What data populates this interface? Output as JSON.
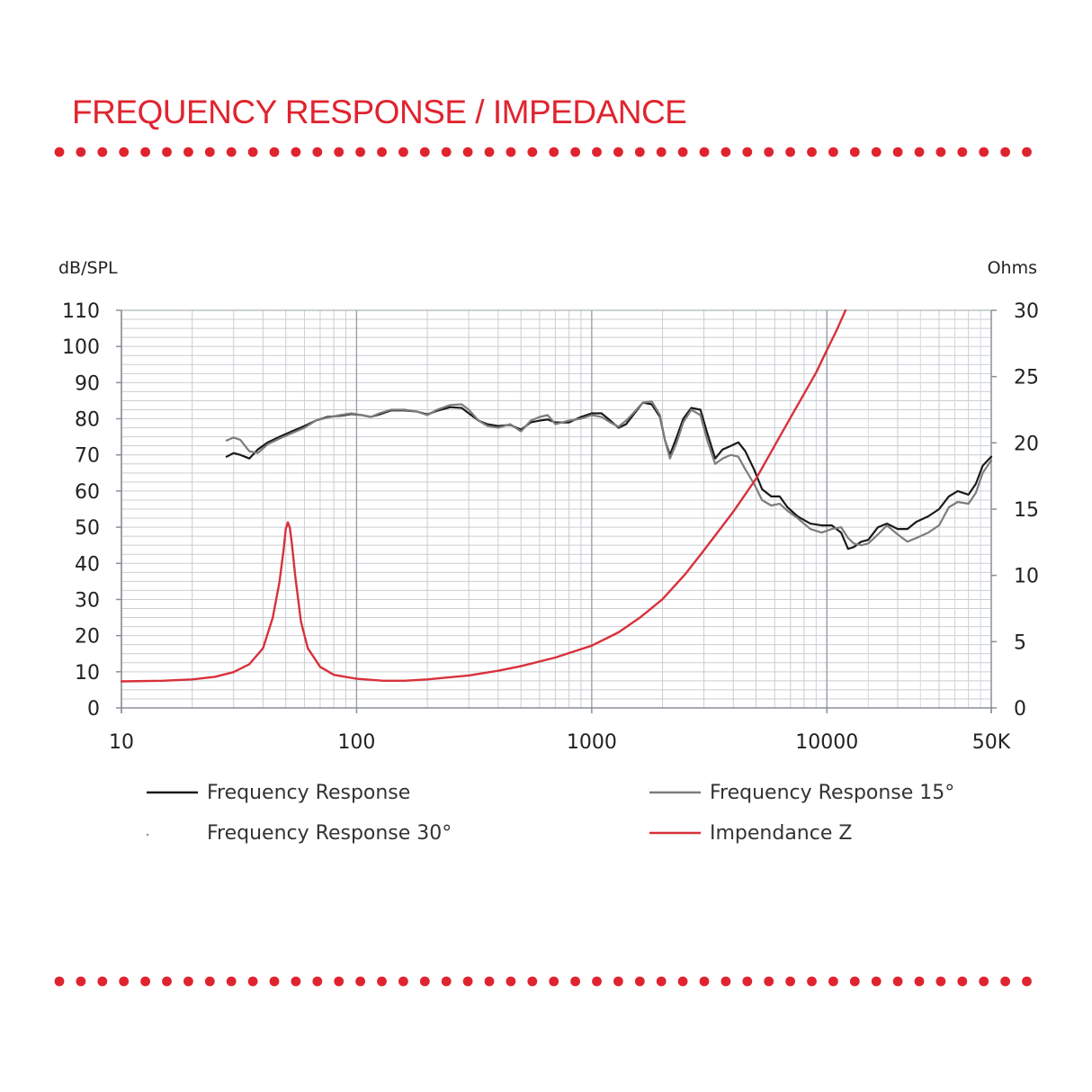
{
  "page": {
    "title": "FREQUENCY RESPONSE / IMPEDANCE",
    "accent_color": "#e0242f"
  },
  "chart_data": {
    "type": "line",
    "title": "FREQUENCY RESPONSE / IMPEDANCE",
    "x_scale": "log",
    "xlim": [
      10,
      50000
    ],
    "x_ticks": [
      {
        "value": 10,
        "label": "10"
      },
      {
        "value": 100,
        "label": "100"
      },
      {
        "value": 1000,
        "label": "1000"
      },
      {
        "value": 10000,
        "label": "10000"
      },
      {
        "value": 50000,
        "label": "50K"
      }
    ],
    "ylabel_left": "dB/SPL",
    "ylim_left": [
      0,
      110
    ],
    "y_ticks_left": [
      0,
      10,
      20,
      30,
      40,
      50,
      60,
      70,
      80,
      90,
      100,
      110
    ],
    "ylabel_right": "Ohms",
    "ylim_right": [
      0,
      30
    ],
    "y_ticks_right": [
      0,
      5,
      10,
      15,
      20,
      25,
      30
    ],
    "grid": true,
    "legend_position": "bottom",
    "series": [
      {
        "name": "Frequency Response",
        "axis": "left",
        "color": "#1a1a1a",
        "points": [
          [
            28,
            69.5
          ],
          [
            30,
            70.5
          ],
          [
            32,
            70
          ],
          [
            35,
            69
          ],
          [
            38,
            71.5
          ],
          [
            42,
            73.5
          ],
          [
            47,
            75
          ],
          [
            53,
            76.5
          ],
          [
            60,
            78
          ],
          [
            67,
            79.5
          ],
          [
            75,
            80.5
          ],
          [
            85,
            80.8
          ],
          [
            95,
            81.3
          ],
          [
            105,
            81
          ],
          [
            115,
            80.5
          ],
          [
            125,
            81.2
          ],
          [
            140,
            82.3
          ],
          [
            160,
            82.3
          ],
          [
            180,
            82
          ],
          [
            200,
            81.2
          ],
          [
            220,
            82.2
          ],
          [
            250,
            83.2
          ],
          [
            280,
            83
          ],
          [
            300,
            81.5
          ],
          [
            330,
            79.5
          ],
          [
            360,
            78.5
          ],
          [
            400,
            78
          ],
          [
            450,
            78.3
          ],
          [
            500,
            77
          ],
          [
            550,
            79
          ],
          [
            600,
            79.5
          ],
          [
            650,
            79.8
          ],
          [
            700,
            79
          ],
          [
            800,
            79
          ],
          [
            900,
            80.5
          ],
          [
            1000,
            81.5
          ],
          [
            1100,
            81.5
          ],
          [
            1200,
            79.5
          ],
          [
            1300,
            77.5
          ],
          [
            1400,
            78.5
          ],
          [
            1500,
            81
          ],
          [
            1650,
            84.5
          ],
          [
            1800,
            84
          ],
          [
            1950,
            80.5
          ],
          [
            2050,
            74
          ],
          [
            2150,
            70
          ],
          [
            2300,
            75
          ],
          [
            2450,
            80
          ],
          [
            2650,
            83
          ],
          [
            2900,
            82.5
          ],
          [
            3100,
            76
          ],
          [
            3350,
            69
          ],
          [
            3600,
            71.5
          ],
          [
            3900,
            72.5
          ],
          [
            4200,
            73.5
          ],
          [
            4500,
            71
          ],
          [
            4900,
            66
          ],
          [
            5300,
            60.5
          ],
          [
            5800,
            58.5
          ],
          [
            6300,
            58.5
          ],
          [
            6800,
            55.5
          ],
          [
            7500,
            53
          ],
          [
            8500,
            51
          ],
          [
            9500,
            50.5
          ],
          [
            10500,
            50.5
          ],
          [
            11500,
            48.5
          ],
          [
            12300,
            44
          ],
          [
            13000,
            44.5
          ],
          [
            14000,
            46
          ],
          [
            15000,
            46.5
          ],
          [
            16500,
            50
          ],
          [
            18000,
            51
          ],
          [
            20000,
            49.5
          ],
          [
            22000,
            49.5
          ],
          [
            24000,
            51.5
          ],
          [
            27000,
            53
          ],
          [
            30000,
            55
          ],
          [
            33000,
            58.5
          ],
          [
            36000,
            60
          ],
          [
            40000,
            59
          ],
          [
            43000,
            62
          ],
          [
            46000,
            67
          ],
          [
            50000,
            69.5
          ]
        ]
      },
      {
        "name": "Frequency Response 15°",
        "axis": "left",
        "color": "#7d7d7d",
        "points": [
          [
            28,
            74
          ],
          [
            30,
            74.8
          ],
          [
            32,
            74.2
          ],
          [
            35,
            71
          ],
          [
            38,
            70.5
          ],
          [
            42,
            73
          ],
          [
            47,
            74.5
          ],
          [
            53,
            76
          ],
          [
            60,
            77.5
          ],
          [
            67,
            79.5
          ],
          [
            75,
            80.3
          ],
          [
            85,
            81
          ],
          [
            95,
            81.5
          ],
          [
            105,
            81
          ],
          [
            115,
            80.5
          ],
          [
            125,
            81.5
          ],
          [
            140,
            82.5
          ],
          [
            160,
            82.5
          ],
          [
            180,
            82
          ],
          [
            200,
            81
          ],
          [
            220,
            82.5
          ],
          [
            250,
            83.8
          ],
          [
            280,
            84
          ],
          [
            300,
            82.5
          ],
          [
            330,
            79.5
          ],
          [
            360,
            78
          ],
          [
            400,
            77.5
          ],
          [
            450,
            78.5
          ],
          [
            500,
            76.5
          ],
          [
            550,
            79.5
          ],
          [
            600,
            80.5
          ],
          [
            650,
            81
          ],
          [
            700,
            78.5
          ],
          [
            800,
            79.5
          ],
          [
            900,
            80
          ],
          [
            1000,
            81
          ],
          [
            1100,
            80.5
          ],
          [
            1200,
            79
          ],
          [
            1300,
            77.8
          ],
          [
            1400,
            79.5
          ],
          [
            1500,
            81.5
          ],
          [
            1650,
            84.5
          ],
          [
            1800,
            84.8
          ],
          [
            1950,
            81
          ],
          [
            2050,
            74
          ],
          [
            2150,
            69
          ],
          [
            2300,
            73.5
          ],
          [
            2450,
            79
          ],
          [
            2650,
            82.5
          ],
          [
            2900,
            81
          ],
          [
            3100,
            74
          ],
          [
            3350,
            67.5
          ],
          [
            3600,
            69
          ],
          [
            3900,
            70
          ],
          [
            4200,
            69.5
          ],
          [
            4500,
            66
          ],
          [
            4900,
            62
          ],
          [
            5300,
            57.5
          ],
          [
            5800,
            56
          ],
          [
            6300,
            56.5
          ],
          [
            6800,
            54.5
          ],
          [
            7500,
            52.5
          ],
          [
            8500,
            49.5
          ],
          [
            9500,
            48.5
          ],
          [
            10500,
            49.5
          ],
          [
            11500,
            50
          ],
          [
            12300,
            47
          ],
          [
            13000,
            45.5
          ],
          [
            14000,
            45
          ],
          [
            15000,
            45.5
          ],
          [
            16500,
            48
          ],
          [
            18000,
            50.5
          ],
          [
            20000,
            48
          ],
          [
            22000,
            46
          ],
          [
            24000,
            47
          ],
          [
            27000,
            48.5
          ],
          [
            30000,
            50.5
          ],
          [
            33000,
            55.5
          ],
          [
            36000,
            57
          ],
          [
            40000,
            56.5
          ],
          [
            43000,
            59.5
          ],
          [
            46000,
            65
          ],
          [
            50000,
            68.5
          ]
        ]
      },
      {
        "name": "Frequency Response 30°",
        "axis": "left",
        "color": "#9a9a9a",
        "points": []
      },
      {
        "name": "Impendance Z",
        "axis": "right",
        "color": "#d8313b",
        "points": [
          [
            10,
            2
          ],
          [
            15,
            2.05
          ],
          [
            20,
            2.15
          ],
          [
            25,
            2.35
          ],
          [
            30,
            2.7
          ],
          [
            35,
            3.3
          ],
          [
            40,
            4.5
          ],
          [
            44,
            6.8
          ],
          [
            47,
            9.5
          ],
          [
            49,
            12
          ],
          [
            50,
            13.5
          ],
          [
            51,
            14
          ],
          [
            52,
            13.6
          ],
          [
            53,
            12.5
          ],
          [
            55,
            9.8
          ],
          [
            58,
            6.5
          ],
          [
            62,
            4.5
          ],
          [
            70,
            3.1
          ],
          [
            80,
            2.5
          ],
          [
            100,
            2.2
          ],
          [
            130,
            2.05
          ],
          [
            160,
            2.05
          ],
          [
            200,
            2.15
          ],
          [
            300,
            2.45
          ],
          [
            400,
            2.8
          ],
          [
            500,
            3.15
          ],
          [
            700,
            3.8
          ],
          [
            1000,
            4.7
          ],
          [
            1300,
            5.7
          ],
          [
            1600,
            6.8
          ],
          [
            2000,
            8.2
          ],
          [
            2500,
            10.1
          ],
          [
            3000,
            11.9
          ],
          [
            4000,
            14.8
          ],
          [
            5000,
            17.3
          ],
          [
            6000,
            19.8
          ],
          [
            7000,
            21.9
          ],
          [
            8000,
            23.7
          ],
          [
            9000,
            25.3
          ],
          [
            10000,
            27
          ],
          [
            11000,
            28.5
          ],
          [
            12000,
            30
          ]
        ]
      }
    ]
  },
  "legend": {
    "items": [
      {
        "label": "Frequency Response",
        "color": "#1a1a1a",
        "style": "line"
      },
      {
        "label": "Frequency Response 15°",
        "color": "#7d7d7d",
        "style": "line"
      },
      {
        "label": "Frequency Response 30°",
        "color": "#9a9a9a",
        "style": "dot"
      },
      {
        "label": "Impendance Z",
        "color": "#d8313b",
        "style": "line"
      }
    ]
  }
}
